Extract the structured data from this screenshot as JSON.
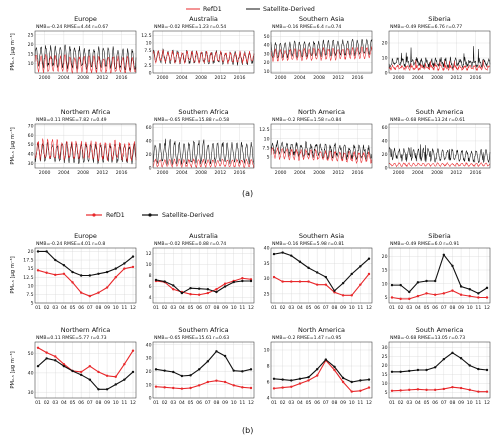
{
  "legend_a": [
    {
      "name": "RefD1",
      "color": "#e8282b"
    },
    {
      "name": "Satellite-Derived",
      "color": "#111111"
    }
  ],
  "legend_b": [
    {
      "name": "RefD1",
      "color": "#e8282b"
    },
    {
      "name": "Satellite-Derived",
      "color": "#111111"
    }
  ],
  "captions": {
    "a": "(a)",
    "b": "(b)"
  },
  "ylabel": "PM₂.₅ [µg m⁻³]",
  "chart_data": [
    {
      "panel": "a",
      "type": "line",
      "x": {
        "start": 1998,
        "end": 2019,
        "ticks": [
          2000,
          2004,
          2008,
          2012,
          2016
        ]
      },
      "plots": [
        {
          "region": "Europe",
          "stats": "NMB=-0.24  RMSE=4.44  r=0.67",
          "ylim": [
            5,
            27
          ],
          "yticks": [
            10,
            15,
            20,
            25
          ],
          "series": [
            {
              "name": "Satellite-Derived",
              "base": 14,
              "amp": 5,
              "trend": -2,
              "jit": 1.5
            },
            {
              "name": "RefD1",
              "base": 10,
              "amp": 4,
              "trend": -1,
              "jit": 1
            }
          ]
        },
        {
          "region": "Australia",
          "stats": "NMB=-0.02  RMSE=1.23  r=0.54",
          "ylim": [
            0,
            14
          ],
          "yticks": [
            0.0,
            2.5,
            5.0,
            7.5,
            10.0,
            12.5
          ],
          "series": [
            {
              "name": "Satellite-Derived",
              "base": 5.5,
              "amp": 1.8,
              "trend": -0.5,
              "jit": 0.8
            },
            {
              "name": "RefD1",
              "base": 5.5,
              "amp": 1.6,
              "trend": -0.3,
              "jit": 0.6
            }
          ]
        },
        {
          "region": "Southern Asia",
          "stats": "NMB=-0.16  RMSE=6.4  r=0.74",
          "ylim": [
            8,
            56
          ],
          "yticks": [
            10,
            20,
            30,
            40,
            50
          ],
          "series": [
            {
              "name": "Satellite-Derived",
              "base": 34,
              "amp": 8,
              "trend": 4,
              "jit": 2
            },
            {
              "name": "RefD1",
              "base": 28,
              "amp": 6,
              "trend": 3,
              "jit": 1.5
            }
          ]
        },
        {
          "region": "Siberia",
          "stats": "NMB=-0.49  RMSE=6.76  r=0.77",
          "ylim": [
            0,
            28
          ],
          "yticks": [
            0,
            10,
            20
          ],
          "series": [
            {
              "name": "Satellite-Derived",
              "base": 7,
              "amp": 2,
              "trend": 0,
              "jit": 2,
              "spike": 12
            },
            {
              "name": "RefD1",
              "base": 3.5,
              "amp": 1,
              "trend": 0,
              "jit": 1,
              "spike": 5
            }
          ]
        },
        {
          "region": "Northern Africa",
          "stats": "NMB=0.11  RMSE=7.82  r=0.49",
          "ylim": [
            25,
            72
          ],
          "yticks": [
            30,
            40,
            50,
            60,
            70
          ],
          "series": [
            {
              "name": "Satellite-Derived",
              "base": 42,
              "amp": 9,
              "trend": -2,
              "jit": 3
            },
            {
              "name": "RefD1",
              "base": 45,
              "amp": 9,
              "trend": -2,
              "jit": 3
            }
          ]
        },
        {
          "region": "Southern Africa",
          "stats": "NMB=-0.65  RMSE=15.88  r=0.58",
          "ylim": [
            0,
            65
          ],
          "yticks": [
            0,
            20,
            40,
            60
          ],
          "series": [
            {
              "name": "Satellite-Derived",
              "base": 22,
              "amp": 14,
              "trend": 0,
              "jit": 4,
              "spike": 12
            },
            {
              "name": "RefD1",
              "base": 7,
              "amp": 5,
              "trend": 0,
              "jit": 1.5
            }
          ]
        },
        {
          "region": "North America",
          "stats": "NMB=-0.2  RMSE=1.58  r=0.84",
          "ylim": [
            2,
            14
          ],
          "yticks": [
            5.0,
            7.5,
            10.0,
            12.5
          ],
          "series": [
            {
              "name": "Satellite-Derived",
              "base": 7.5,
              "amp": 1.5,
              "trend": -1.5,
              "jit": 0.8,
              "spike": 2
            },
            {
              "name": "RefD1",
              "base": 6,
              "amp": 1.2,
              "trend": -1.2,
              "jit": 0.5
            }
          ]
        },
        {
          "region": "South America",
          "stats": "NMB=-0.68  RMSE=13.24  r=0.61",
          "ylim": [
            0,
            65
          ],
          "yticks": [
            0,
            20,
            40,
            60
          ],
          "series": [
            {
              "name": "Satellite-Derived",
              "base": 20,
              "amp": 8,
              "trend": -3,
              "jit": 3,
              "spike": 25
            },
            {
              "name": "RefD1",
              "base": 5,
              "amp": 2,
              "trend": 0,
              "jit": 1
            }
          ]
        }
      ]
    },
    {
      "panel": "b",
      "type": "line",
      "categories": [
        "01",
        "02",
        "03",
        "04",
        "05",
        "06",
        "07",
        "08",
        "09",
        "10",
        "11",
        "12"
      ],
      "plots": [
        {
          "region": "Europe",
          "stats": "NMB=-0.24  RMSE=4.01  r=0.8",
          "ylim": [
            5,
            21
          ],
          "yticks": [
            5.0,
            7.5,
            10.0,
            12.5,
            15.0,
            17.5,
            20.0
          ],
          "series": [
            {
              "name": "RefD1",
              "values": [
                14.5,
                13.8,
                13.2,
                13.5,
                11.0,
                8.0,
                7.0,
                8.0,
                9.5,
                12.5,
                15.0,
                15.5
              ]
            },
            {
              "name": "Satellite-Derived",
              "values": [
                20.0,
                20.0,
                17.5,
                16.0,
                14.0,
                13.0,
                13.0,
                13.5,
                14.0,
                15.0,
                16.5,
                18.5
              ]
            }
          ]
        },
        {
          "region": "Australia",
          "stats": "NMB=-0.02  RMSE=0.88  r=0.74",
          "ylim": [
            3,
            13
          ],
          "yticks": [
            4,
            6,
            8,
            10,
            12
          ],
          "series": [
            {
              "name": "RefD1",
              "values": [
                7.0,
                6.8,
                5.5,
                5.0,
                4.6,
                4.5,
                4.8,
                5.5,
                6.5,
                7.0,
                7.5,
                7.3
              ]
            },
            {
              "name": "Satellite-Derived",
              "values": [
                7.2,
                6.9,
                6.2,
                4.8,
                5.7,
                5.6,
                5.5,
                5.0,
                6.0,
                6.8,
                7.0,
                7.0
              ]
            }
          ]
        },
        {
          "region": "Southern Asia",
          "stats": "NMB=-0.16  RMSE=5.98  r=0.81",
          "ylim": [
            22,
            40
          ],
          "yticks": [
            25,
            30,
            35,
            40
          ],
          "series": [
            {
              "name": "RefD1",
              "values": [
                30.5,
                29.0,
                29.0,
                29.0,
                29.0,
                28.0,
                28.0,
                25.5,
                24.5,
                24.5,
                28.0,
                31.5
              ]
            },
            {
              "name": "Satellite-Derived",
              "values": [
                38.0,
                38.5,
                37.5,
                35.5,
                33.5,
                32.0,
                30.5,
                26.0,
                28.5,
                31.5,
                34.0,
                36.5
              ]
            }
          ]
        },
        {
          "region": "Siberia",
          "stats": "NMB=-0.49  RMSE=6.0  r=0.91",
          "ylim": [
            3,
            23
          ],
          "yticks": [
            5,
            10,
            15,
            20
          ],
          "series": [
            {
              "name": "RefD1",
              "values": [
                5.0,
                4.5,
                4.5,
                5.5,
                6.5,
                6.0,
                6.5,
                7.5,
                6.0,
                5.5,
                5.0,
                5.0
              ]
            },
            {
              "name": "Satellite-Derived",
              "values": [
                9.5,
                9.5,
                7.0,
                10.5,
                11.0,
                11.0,
                20.5,
                16.5,
                9.0,
                8.0,
                6.5,
                8.5
              ]
            }
          ]
        },
        {
          "region": "Northern Africa",
          "stats": "NMB=0.11  RMSE=5.77  r=0.73",
          "ylim": [
            27,
            56
          ],
          "yticks": [
            30,
            40,
            50
          ],
          "series": [
            {
              "name": "RefD1",
              "values": [
                53.0,
                50.5,
                48.5,
                44.5,
                41.0,
                40.5,
                43.5,
                40.5,
                38.5,
                38.0,
                44.5,
                51.5
              ]
            },
            {
              "name": "Satellite-Derived",
              "values": [
                43.5,
                47.5,
                46.5,
                43.5,
                41.0,
                39.0,
                36.5,
                31.5,
                31.5,
                34.0,
                36.5,
                40.5
              ]
            }
          ]
        },
        {
          "region": "Southern Africa",
          "stats": "NMB=-0.65  RMSE=15.61  r=0.63",
          "ylim": [
            0,
            42
          ],
          "yticks": [
            0,
            10,
            20,
            30,
            40
          ],
          "series": [
            {
              "name": "RefD1",
              "values": [
                8.5,
                8.0,
                7.5,
                7.0,
                7.5,
                9.5,
                12.0,
                13.0,
                12.0,
                9.5,
                8.0,
                7.5
              ]
            },
            {
              "name": "Satellite-Derived",
              "values": [
                21.5,
                20.5,
                19.5,
                16.5,
                17.0,
                21.5,
                27.5,
                35.0,
                31.5,
                20.5,
                20.0,
                21.5
              ]
            }
          ]
        },
        {
          "region": "North America",
          "stats": "NMB=-0.2  RMSE=1.47  r=0.95",
          "ylim": [
            4,
            11
          ],
          "yticks": [
            4,
            6,
            8,
            10
          ],
          "series": [
            {
              "name": "RefD1",
              "values": [
                5.2,
                5.3,
                5.4,
                5.8,
                6.2,
                6.8,
                8.7,
                7.5,
                6.0,
                4.8,
                4.9,
                5.3
              ]
            },
            {
              "name": "Satellite-Derived",
              "values": [
                6.4,
                6.3,
                6.2,
                6.4,
                6.6,
                7.6,
                8.8,
                7.9,
                6.5,
                6.0,
                6.2,
                6.3
              ]
            }
          ]
        },
        {
          "region": "South America",
          "stats": "NMB=-0.68  RMSE=13.05  r=0.73",
          "ylim": [
            2,
            33
          ],
          "yticks": [
            5,
            10,
            15,
            20,
            25,
            30
          ],
          "series": [
            {
              "name": "RefD1",
              "values": [
                6.0,
                6.2,
                6.5,
                6.8,
                6.5,
                6.5,
                7.0,
                8.0,
                7.5,
                6.5,
                5.5,
                5.5
              ]
            },
            {
              "name": "Satellite-Derived",
              "values": [
                16.5,
                16.5,
                17.0,
                17.5,
                17.5,
                19.0,
                23.5,
                27.0,
                24.0,
                20.0,
                18.0,
                17.5
              ]
            }
          ]
        }
      ]
    }
  ]
}
